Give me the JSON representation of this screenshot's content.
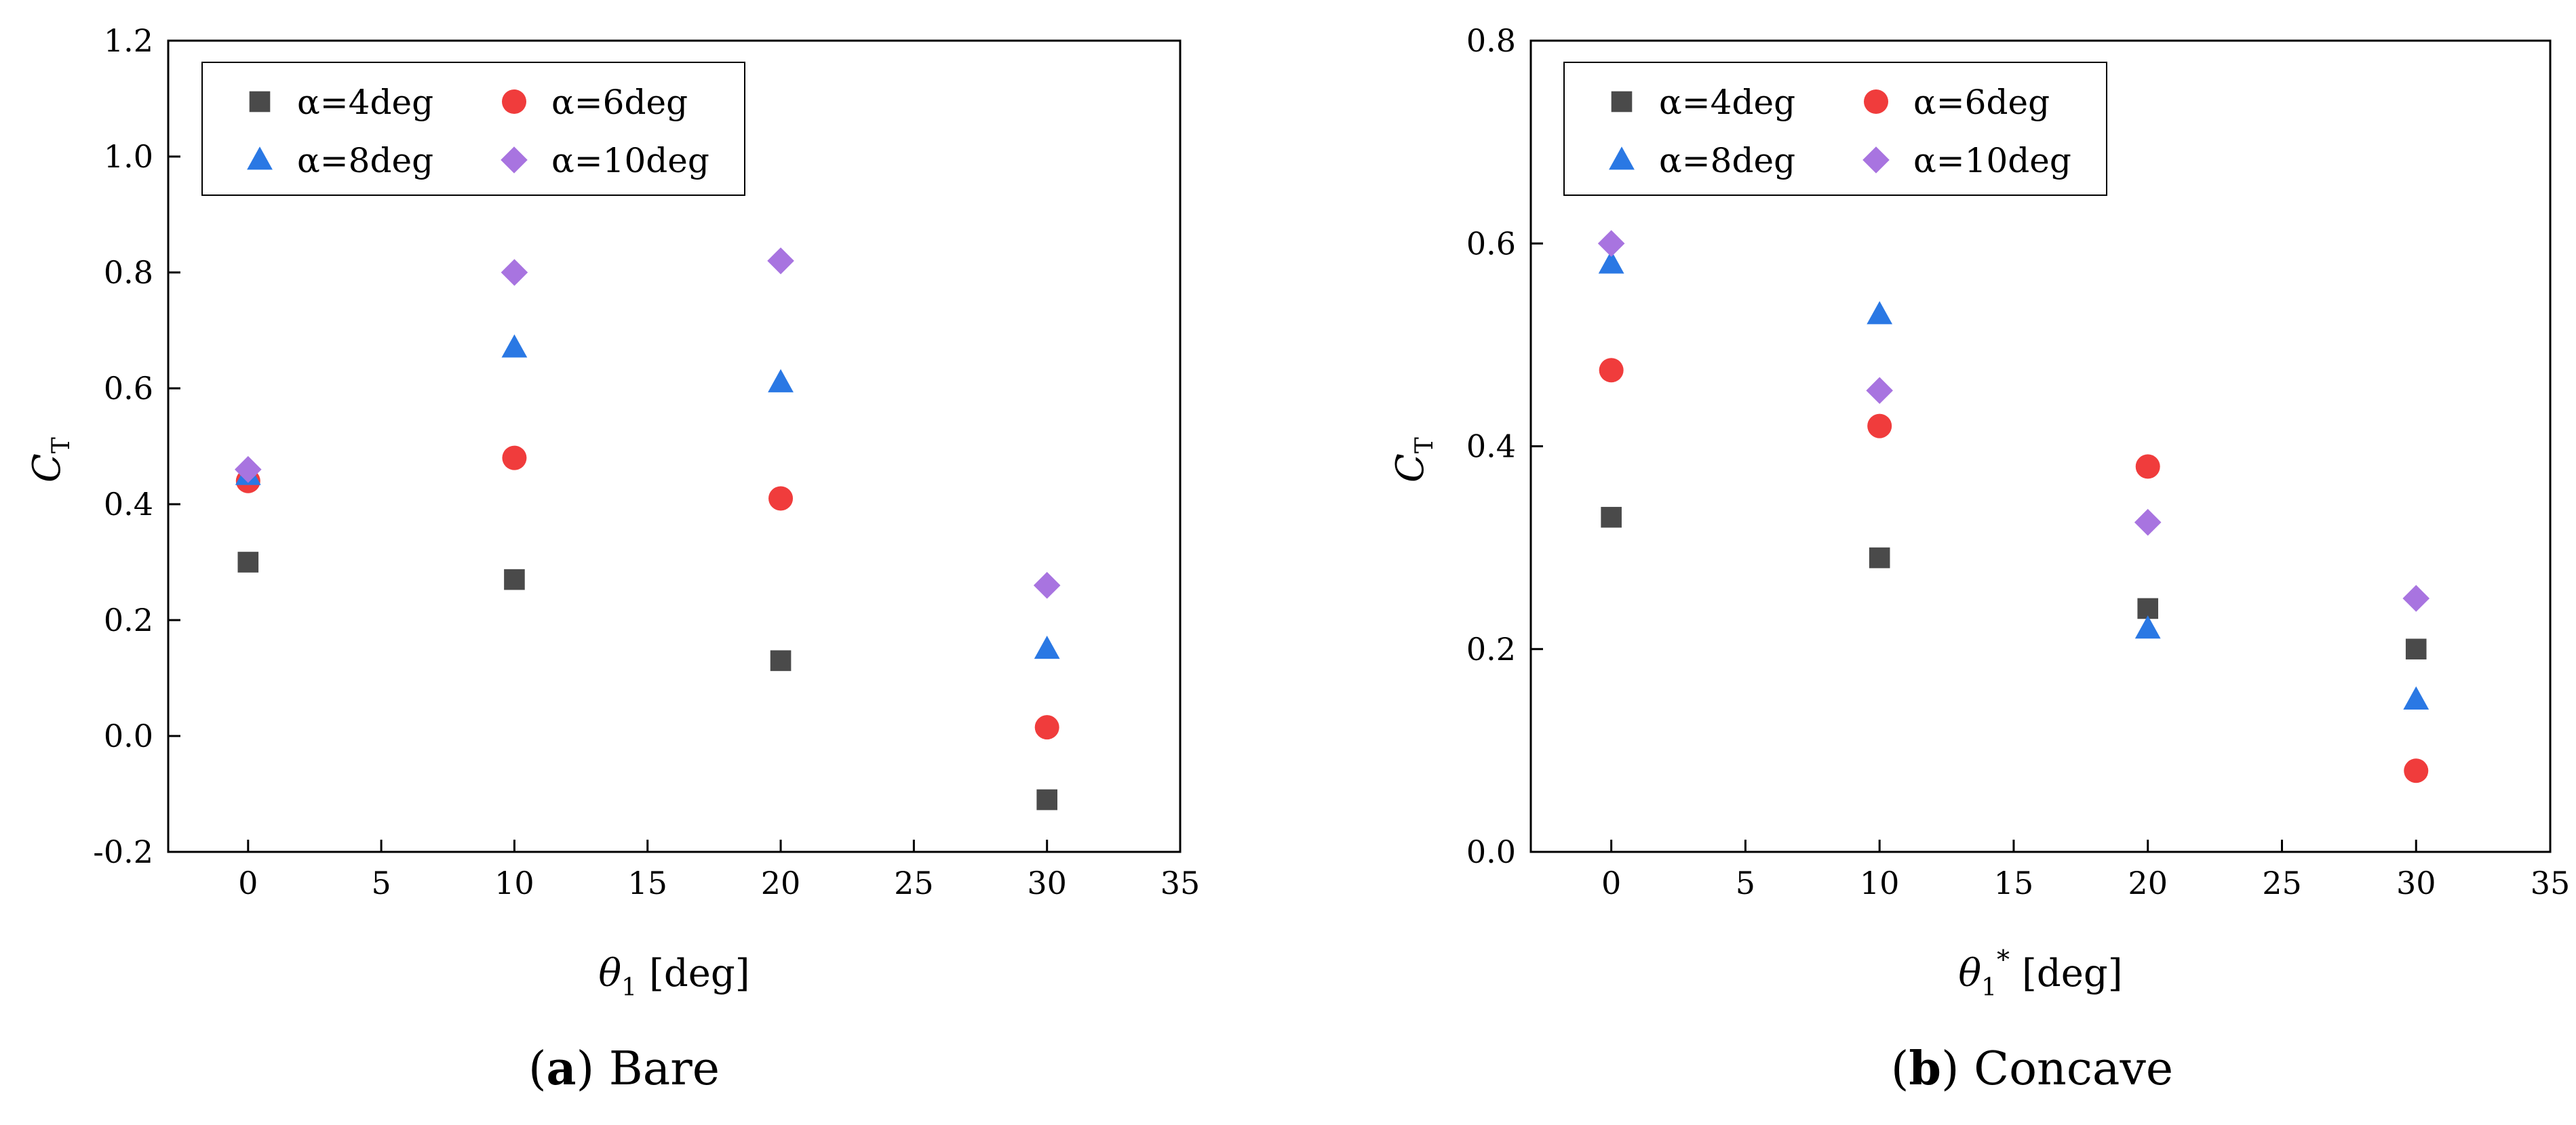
{
  "chart_data": [
    {
      "type": "scatter",
      "caption_letter": "a",
      "caption_text": " Bare",
      "xlabel_symbol": "θ",
      "xlabel_sub": "1",
      "xlabel_sup": "",
      "xlabel_unit": "[deg]",
      "ylabel_main": "C",
      "ylabel_sub": "T",
      "xlim": [
        -3,
        35
      ],
      "ylim": [
        -0.2,
        1.2
      ],
      "xticks": [
        "0",
        "5",
        "10",
        "15",
        "20",
        "25",
        "30",
        "35"
      ],
      "yticks": [
        "-0.2",
        "0.0",
        "0.2",
        "0.4",
        "0.6",
        "0.8",
        "1.0",
        "1.2"
      ],
      "grid": false,
      "legend_position": "top-left",
      "x": [
        0,
        10,
        20,
        30
      ],
      "series": [
        {
          "name": "α=4deg",
          "marker": "square",
          "color": "#4a4a4a",
          "values": [
            0.3,
            0.27,
            0.13,
            -0.11
          ]
        },
        {
          "name": "α=6deg",
          "marker": "circle",
          "color": "#f03c3c",
          "values": [
            0.44,
            0.48,
            0.41,
            0.015
          ]
        },
        {
          "name": "α=8deg",
          "marker": "triangle",
          "color": "#2a78e4",
          "values": [
            0.45,
            0.67,
            0.61,
            0.15
          ]
        },
        {
          "name": "α=10deg",
          "marker": "diamond",
          "color": "#a874e0",
          "values": [
            0.46,
            0.8,
            0.82,
            0.26
          ]
        }
      ]
    },
    {
      "type": "scatter",
      "caption_letter": "b",
      "caption_text": " Concave",
      "xlabel_symbol": "θ",
      "xlabel_sub": "1",
      "xlabel_sup": "*",
      "xlabel_unit": "[deg]",
      "ylabel_main": "C",
      "ylabel_sub": "T",
      "xlim": [
        -3,
        35
      ],
      "ylim": [
        0.0,
        0.8
      ],
      "xticks": [
        "0",
        "5",
        "10",
        "15",
        "20",
        "25",
        "30",
        "35"
      ],
      "yticks": [
        "0.0",
        "0.2",
        "0.4",
        "0.6",
        "0.8"
      ],
      "grid": false,
      "legend_position": "top-left",
      "x": [
        0,
        10,
        20,
        30
      ],
      "series": [
        {
          "name": "α=4deg",
          "marker": "square",
          "color": "#4a4a4a",
          "values": [
            0.33,
            0.29,
            0.24,
            0.2
          ]
        },
        {
          "name": "α=6deg",
          "marker": "circle",
          "color": "#f03c3c",
          "values": [
            0.475,
            0.42,
            0.38,
            0.08
          ]
        },
        {
          "name": "α=8deg",
          "marker": "triangle",
          "color": "#2a78e4",
          "values": [
            0.58,
            0.53,
            0.22,
            0.15
          ]
        },
        {
          "name": "α=10deg",
          "marker": "diamond",
          "color": "#a874e0",
          "values": [
            0.6,
            0.455,
            0.325,
            0.25
          ]
        }
      ]
    }
  ]
}
